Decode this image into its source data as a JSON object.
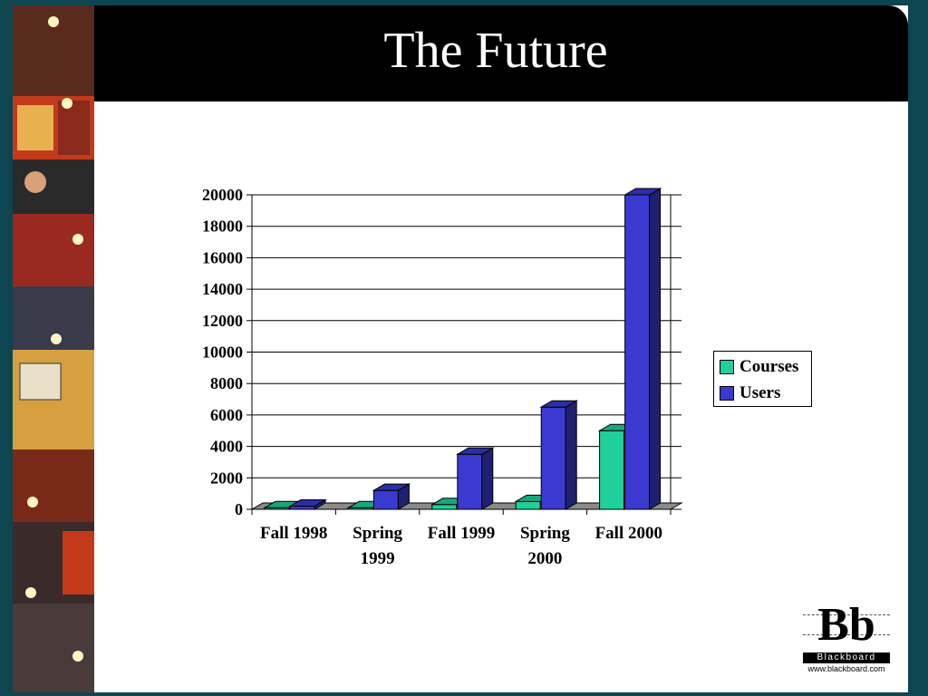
{
  "slide": {
    "title": "The Future"
  },
  "logo": {
    "letters": "Bb",
    "wordmark": "Blackboard",
    "url": "www.blackboard.com"
  },
  "colors": {
    "courses": "#1fcf9c",
    "users": "#3a3ad0",
    "background_frame": "#0d4550",
    "title_bar": "#000000"
  },
  "chart_data": {
    "type": "bar",
    "title": "",
    "xlabel": "",
    "ylabel": "",
    "categories": [
      [
        "Fall 1998"
      ],
      [
        "Spring",
        "1999"
      ],
      [
        "Fall 1999"
      ],
      [
        "Spring",
        "2000"
      ],
      [
        "Fall 2000"
      ]
    ],
    "series": [
      {
        "name": "Courses",
        "color": "#1fcf9c",
        "values": [
          100,
          100,
          300,
          500,
          5000
        ]
      },
      {
        "name": "Users",
        "color": "#3a3ad0",
        "values": [
          200,
          1200,
          3500,
          6500,
          20000
        ]
      }
    ],
    "ylim": [
      0,
      20000
    ],
    "yticks": [
      0,
      2000,
      4000,
      6000,
      8000,
      10000,
      12000,
      14000,
      16000,
      18000,
      20000
    ],
    "grid": true,
    "legend_position": "right",
    "style": "3d-columns"
  }
}
